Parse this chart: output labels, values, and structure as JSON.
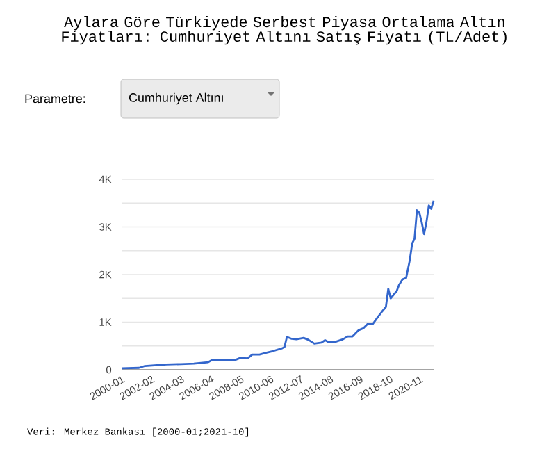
{
  "chart_data": {
    "type": "line",
    "title": "Aylara Göre Türkiyede Serbest Piyasa Ortalama Altın Fiyatları: Cumhuriyet Altını Satış Fiyatı (TL/Adet)",
    "annotations": [
      "Parametre:",
      "Cumhuriyet Altını",
      "Veri: Merkez Bankası [2000-01;2021-10]"
    ],
    "x": [
      "2000-01",
      "2001-03",
      "2001-08",
      "2002-02",
      "2003-02",
      "2004-02",
      "2005-01",
      "2006-01",
      "2006-05",
      "2007-01",
      "2007-12",
      "2008-04",
      "2008-10",
      "2009-02",
      "2009-08",
      "2010-02",
      "2010-07",
      "2011-03",
      "2011-05",
      "2011-07",
      "2011-11",
      "2012-03",
      "2012-09",
      "2013-01",
      "2013-06",
      "2013-12",
      "2014-03",
      "2014-06",
      "2014-12",
      "2015-06",
      "2015-10",
      "2016-02",
      "2016-07",
      "2016-11",
      "2017-03",
      "2017-07",
      "2017-11",
      "2018-03",
      "2018-06",
      "2018-08",
      "2018-10",
      "2019-03",
      "2019-05",
      "2019-08",
      "2019-11",
      "2020-02",
      "2020-04",
      "2020-06",
      "2020-08",
      "2020-10",
      "2020-12",
      "2021-02",
      "2021-04",
      "2021-06",
      "2021-08",
      "2021-10"
    ],
    "series": [
      {
        "color": "#3366cc",
        "values": [
          30,
          40,
          80,
          90,
          110,
          120,
          130,
          160,
          215,
          200,
          210,
          250,
          240,
          320,
          320,
          360,
          390,
          450,
          480,
          690,
          650,
          640,
          670,
          630,
          550,
          570,
          620,
          580,
          590,
          640,
          700,
          700,
          830,
          870,
          970,
          960,
          1100,
          1230,
          1320,
          1700,
          1500,
          1650,
          1780,
          1900,
          1930,
          2300,
          2650,
          2750,
          3350,
          3300,
          3100,
          2850,
          3100,
          3450,
          3380,
          3550
        ]
      }
    ],
    "xlim": [
      "2000-01",
      "2021-10"
    ],
    "xticks": [
      "2000-01",
      "2002-02",
      "2004-03",
      "2006-04",
      "2008-05",
      "2010-06",
      "2012-07",
      "2014-08",
      "2016-09",
      "2018-10",
      "2020-11"
    ],
    "ylim": [
      0,
      4000
    ],
    "yticks": [
      {
        "value": 0,
        "label": "0"
      },
      {
        "value": 500,
        "label": null
      },
      {
        "value": 1000,
        "label": "1K"
      },
      {
        "value": 1500,
        "label": null
      },
      {
        "value": 2000,
        "label": "2K"
      },
      {
        "value": 2500,
        "label": null
      },
      {
        "value": 3000,
        "label": "3K"
      },
      {
        "value": 3500,
        "label": null
      },
      {
        "value": 4000,
        "label": "4K"
      }
    ],
    "grid": "y",
    "marker": "none",
    "line_style": "solid"
  }
}
